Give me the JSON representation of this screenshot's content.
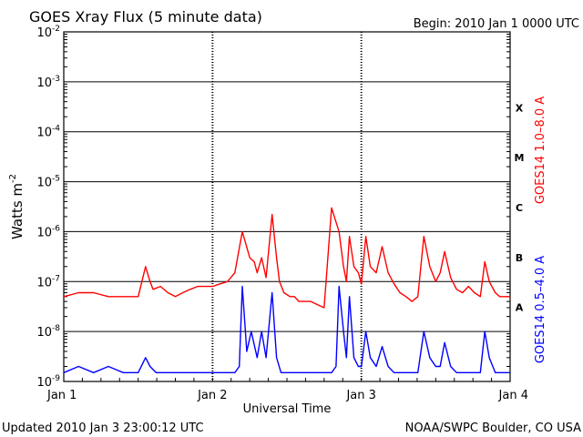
{
  "header": {
    "title": "GOES Xray Flux (5 minute data)",
    "begin": "Begin:  2010 Jan 1 0000 UTC"
  },
  "footer": {
    "updated": "Updated 2010 Jan  3 23:00:12 UTC",
    "credit": "NOAA/SWPC Boulder, CO USA"
  },
  "chart_data": {
    "type": "line",
    "title": "GOES Xray Flux (5 minute data)",
    "xlabel": "Universal Time",
    "ylabel_main": "Watts m",
    "ylabel_sup": "-2",
    "yscale": "log",
    "ylim": [
      1e-09,
      0.01
    ],
    "x_ticks": [
      "Jan 1",
      "Jan 2",
      "Jan 3",
      "Jan 4"
    ],
    "y_ticks": [
      {
        "exp": -9,
        "label_base": "10",
        "label_exp": "-9"
      },
      {
        "exp": -8,
        "label_base": "10",
        "label_exp": "-8"
      },
      {
        "exp": -7,
        "label_base": "10",
        "label_exp": "-7"
      },
      {
        "exp": -6,
        "label_base": "10",
        "label_exp": "-6"
      },
      {
        "exp": -5,
        "label_base": "10",
        "label_exp": "-5"
      },
      {
        "exp": -4,
        "label_base": "10",
        "label_exp": "-4"
      },
      {
        "exp": -3,
        "label_base": "10",
        "label_exp": "-3"
      },
      {
        "exp": -2,
        "label_base": "10",
        "label_exp": "-2"
      }
    ],
    "flare_classes": [
      {
        "label": "A",
        "exp": -8
      },
      {
        "label": "B",
        "exp": -7
      },
      {
        "label": "C",
        "exp": -6
      },
      {
        "label": "M",
        "exp": -5
      },
      {
        "label": "X",
        "exp": -4
      }
    ],
    "series": [
      {
        "name": "GOES14 1.0–8.0 A",
        "color": "#ff0000",
        "x_days": [
          0.0,
          0.1,
          0.2,
          0.3,
          0.4,
          0.5,
          0.55,
          0.58,
          0.6,
          0.65,
          0.7,
          0.75,
          0.8,
          0.85,
          0.9,
          0.95,
          1.0,
          1.05,
          1.1,
          1.15,
          1.2,
          1.25,
          1.28,
          1.3,
          1.33,
          1.36,
          1.4,
          1.43,
          1.45,
          1.48,
          1.52,
          1.55,
          1.58,
          1.62,
          1.66,
          1.7,
          1.75,
          1.8,
          1.85,
          1.88,
          1.9,
          1.92,
          1.95,
          1.98,
          2.0,
          2.03,
          2.06,
          2.1,
          2.14,
          2.18,
          2.22,
          2.26,
          2.3,
          2.34,
          2.38,
          2.42,
          2.46,
          2.5,
          2.53,
          2.56,
          2.6,
          2.64,
          2.68,
          2.72,
          2.76,
          2.8,
          2.83,
          2.86,
          2.9,
          2.93,
          2.96,
          3.0
        ],
        "y": [
          5e-08,
          6e-08,
          6e-08,
          5e-08,
          5e-08,
          5e-08,
          2e-07,
          1e-07,
          7e-08,
          8e-08,
          6e-08,
          5e-08,
          6e-08,
          7e-08,
          8e-08,
          8e-08,
          8e-08,
          9e-08,
          1e-07,
          1.5e-07,
          1e-06,
          3e-07,
          2.5e-07,
          1.5e-07,
          3e-07,
          1.2e-07,
          2.2e-06,
          3e-07,
          1e-07,
          6e-08,
          5e-08,
          5e-08,
          4e-08,
          4e-08,
          4e-08,
          3.5e-08,
          3e-08,
          3e-06,
          1e-06,
          2e-07,
          1e-07,
          8e-07,
          2e-07,
          1.5e-07,
          9e-08,
          8e-07,
          2e-07,
          1.5e-07,
          5e-07,
          1.5e-07,
          9e-08,
          6e-08,
          5e-08,
          4e-08,
          5e-08,
          8e-07,
          2e-07,
          1e-07,
          1.5e-07,
          4e-07,
          1.2e-07,
          7e-08,
          6e-08,
          8e-08,
          6e-08,
          5e-08,
          2.5e-07,
          1e-07,
          6e-08,
          5e-08,
          5e-08,
          5e-08
        ]
      },
      {
        "name": "GOES14 0.5–4.0 A",
        "color": "#0000ff",
        "x_days": [
          0.0,
          0.1,
          0.2,
          0.3,
          0.4,
          0.5,
          0.55,
          0.58,
          0.62,
          0.7,
          0.8,
          0.9,
          1.0,
          1.05,
          1.1,
          1.15,
          1.18,
          1.2,
          1.23,
          1.26,
          1.3,
          1.33,
          1.36,
          1.4,
          1.43,
          1.46,
          1.5,
          1.55,
          1.6,
          1.65,
          1.7,
          1.75,
          1.8,
          1.83,
          1.85,
          1.88,
          1.9,
          1.92,
          1.95,
          1.98,
          2.0,
          2.03,
          2.06,
          2.1,
          2.14,
          2.18,
          2.22,
          2.26,
          2.3,
          2.34,
          2.38,
          2.42,
          2.46,
          2.5,
          2.53,
          2.56,
          2.6,
          2.64,
          2.68,
          2.72,
          2.76,
          2.8,
          2.83,
          2.86,
          2.9,
          2.93,
          2.96,
          3.0
        ],
        "y": [
          1.5e-09,
          2e-09,
          1.5e-09,
          2e-09,
          1.5e-09,
          1.5e-09,
          3e-09,
          2e-09,
          1.5e-09,
          1.5e-09,
          1.5e-09,
          1.5e-09,
          1.5e-09,
          1.5e-09,
          1.5e-09,
          1.5e-09,
          2e-09,
          8e-08,
          4e-09,
          1e-08,
          3e-09,
          1e-08,
          3e-09,
          6e-08,
          3e-09,
          1.5e-09,
          1.5e-09,
          1.5e-09,
          1.5e-09,
          1.5e-09,
          1.5e-09,
          1.5e-09,
          1.5e-09,
          2e-09,
          8e-08,
          1e-08,
          3e-09,
          5e-08,
          3e-09,
          2e-09,
          2e-09,
          1e-08,
          3e-09,
          2e-09,
          5e-09,
          2e-09,
          1.5e-09,
          1.5e-09,
          1.5e-09,
          1.5e-09,
          1.5e-09,
          1e-08,
          3e-09,
          2e-09,
          2e-09,
          6e-09,
          2e-09,
          1.5e-09,
          1.5e-09,
          1.5e-09,
          1.5e-09,
          1.5e-09,
          1e-08,
          3e-09,
          1.5e-09,
          1.5e-09,
          1.5e-09,
          1.5e-09
        ]
      }
    ],
    "grid": true
  }
}
